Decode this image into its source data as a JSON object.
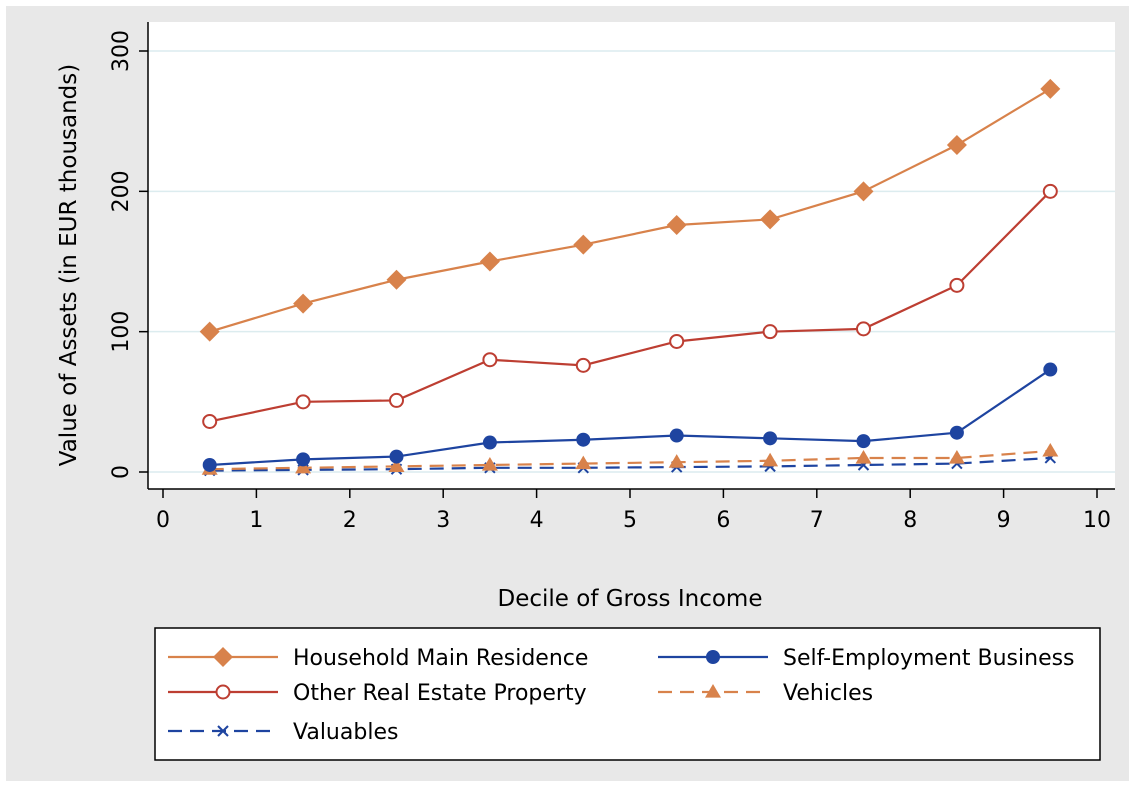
{
  "chart_data": {
    "type": "line",
    "title": "",
    "xlabel": "Decile of Gross Income",
    "ylabel": "Value of Assets (in EUR thousands)",
    "xlim": [
      0,
      10
    ],
    "ylim": [
      0,
      300
    ],
    "xticks": [
      0,
      1,
      2,
      3,
      4,
      5,
      6,
      7,
      8,
      9,
      10
    ],
    "yticks": [
      0,
      100,
      200,
      300
    ],
    "grid": true,
    "legend_position": "bottom",
    "x": [
      0.5,
      1.5,
      2.5,
      3.5,
      4.5,
      5.5,
      6.5,
      7.5,
      8.5,
      9.5
    ],
    "series": [
      {
        "name": "Household Main Residence",
        "color": "#d8824b",
        "marker": "diamond",
        "dash": "solid",
        "values": [
          100,
          120,
          137,
          150,
          162,
          176,
          180,
          200,
          233,
          273
        ]
      },
      {
        "name": "Other Real Estate Property",
        "color": "#bd3e32",
        "marker": "circle-open",
        "dash": "solid",
        "values": [
          36,
          50,
          51,
          80,
          76,
          93,
          100,
          102,
          133,
          200
        ]
      },
      {
        "name": "Self-Employment Business",
        "color": "#1e44a0",
        "marker": "circle",
        "dash": "solid",
        "values": [
          5,
          9,
          11,
          21,
          23,
          26,
          24,
          22,
          28,
          73
        ]
      },
      {
        "name": "Vehicles",
        "color": "#d8824b",
        "marker": "triangle",
        "dash": "dashed",
        "values": [
          2,
          3,
          4,
          5,
          6,
          7,
          8,
          10,
          10,
          15
        ]
      },
      {
        "name": "Valuables",
        "color": "#1e44a0",
        "marker": "x",
        "dash": "dashed",
        "values": [
          1,
          1.5,
          2,
          3,
          3,
          3.5,
          4,
          5,
          6,
          10
        ]
      }
    ],
    "legend_order": [
      0,
      2,
      1,
      3,
      4
    ]
  },
  "colors": {
    "outer_background": "#e8e8e8",
    "plot_background": "#ffffff",
    "grid": "#dcecef"
  }
}
